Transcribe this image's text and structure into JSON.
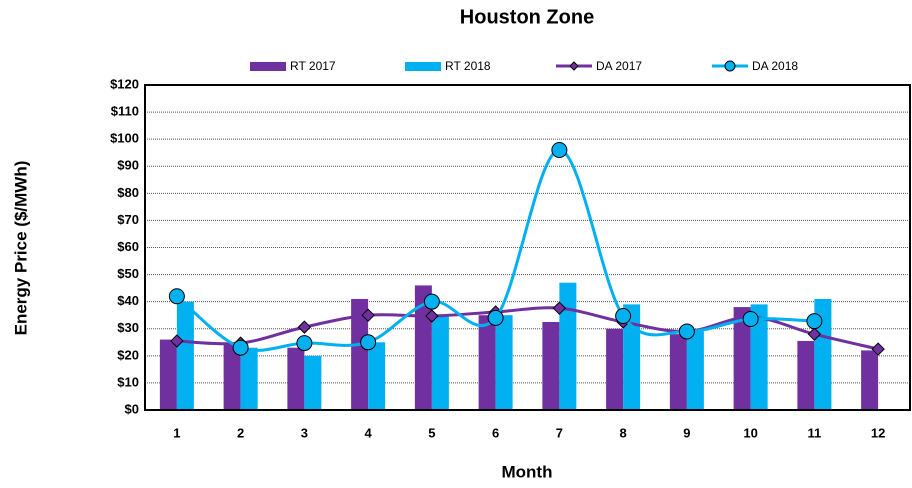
{
  "chart_data": {
    "type": "bar_line",
    "title": "Houston Zone",
    "x_label": "Month",
    "y_label": "Energy Price ($/MWh)",
    "categories": [
      "1",
      "2",
      "3",
      "4",
      "5",
      "6",
      "7",
      "8",
      "9",
      "10",
      "11",
      "12"
    ],
    "series": [
      {
        "name": "RT 2017",
        "kind": "bar",
        "color": "#7030a0",
        "values": [
          26,
          24,
          23,
          41,
          46,
          35,
          32.5,
          30,
          28,
          38,
          25.5,
          22
        ]
      },
      {
        "name": "RT 2018",
        "kind": "bar",
        "color": "#00b0f0",
        "values": [
          40,
          23,
          20,
          25,
          35,
          35,
          47,
          39,
          29,
          39,
          41,
          null
        ]
      },
      {
        "name": "DA 2017",
        "kind": "line",
        "marker": "diamond",
        "color": "#7030a0",
        "values": [
          25.5,
          24.7,
          30.6,
          35,
          34.7,
          36.2,
          37.6,
          32.5,
          29,
          34.3,
          28,
          22.5
        ]
      },
      {
        "name": "DA 2018",
        "kind": "line",
        "marker": "circle",
        "color": "#00b0f0",
        "values": [
          42,
          23,
          24.7,
          25,
          40,
          34,
          96,
          34.7,
          29,
          33.6,
          32.8,
          null
        ]
      }
    ],
    "ylim": [
      0,
      120
    ],
    "yticks": [
      {
        "value": 0,
        "label": "$0"
      },
      {
        "value": 10,
        "label": "$10"
      },
      {
        "value": 20,
        "label": "$20"
      },
      {
        "value": 30,
        "label": "$30"
      },
      {
        "value": 40,
        "label": "$40"
      },
      {
        "value": 50,
        "label": "$50"
      },
      {
        "value": 60,
        "label": "$60"
      },
      {
        "value": 70,
        "label": "$70"
      },
      {
        "value": 80,
        "label": "$80"
      },
      {
        "value": 90,
        "label": "$90"
      },
      {
        "value": 100,
        "label": "$100"
      },
      {
        "value": 110,
        "label": "$110"
      },
      {
        "value": 120,
        "label": "$120"
      }
    ],
    "grid": true,
    "legend": "top"
  }
}
